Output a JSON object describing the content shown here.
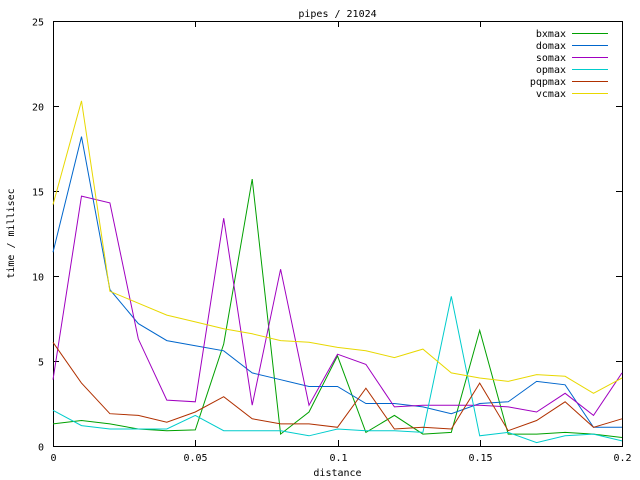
{
  "chart_data": {
    "type": "line",
    "title": "pipes / 21024",
    "xlabel": "distance",
    "ylabel": "time / millisec",
    "xlim": [
      0,
      0.2
    ],
    "ylim": [
      0,
      25
    ],
    "xticks": [
      0,
      0.05,
      0.1,
      0.15,
      0.2
    ],
    "xtick_labels": [
      "0",
      "0.05",
      "0.1",
      "0.15",
      "0.2"
    ],
    "yticks": [
      0,
      5,
      10,
      15,
      20,
      25
    ],
    "ytick_labels": [
      "0",
      "5",
      "10",
      "15",
      "20",
      "25"
    ],
    "grid": false,
    "legend_position": "top-right",
    "x": [
      0,
      0.01,
      0.02,
      0.03,
      0.04,
      0.05,
      0.06,
      0.07,
      0.08,
      0.09,
      0.1,
      0.11,
      0.12,
      0.13,
      0.14,
      0.15,
      0.16,
      0.17,
      0.18,
      0.19,
      0.2
    ],
    "series": [
      {
        "name": "bxmax",
        "color": "#00a000",
        "values": [
          1.3,
          1.5,
          1.3,
          1.0,
          0.9,
          0.95,
          6.0,
          15.7,
          0.7,
          2.0,
          5.3,
          0.8,
          1.8,
          0.7,
          0.8,
          6.8,
          0.7,
          0.7,
          0.8,
          0.7,
          0.5
        ]
      },
      {
        "name": "domax",
        "color": "#0066cc",
        "values": [
          11.4,
          18.2,
          9.2,
          7.2,
          6.2,
          5.9,
          5.6,
          4.3,
          3.9,
          3.5,
          3.5,
          2.5,
          2.5,
          2.3,
          1.9,
          2.5,
          2.6,
          3.8,
          3.6,
          1.1,
          1.1
        ]
      },
      {
        "name": "somax",
        "color": "#a000c0",
        "values": [
          3.9,
          14.7,
          14.3,
          6.3,
          2.7,
          2.6,
          13.4,
          2.4,
          10.4,
          2.4,
          5.4,
          4.8,
          2.3,
          2.4,
          2.4,
          2.4,
          2.3,
          2.0,
          3.1,
          1.8,
          4.3
        ]
      },
      {
        "name": "opmax",
        "color": "#00cccc",
        "values": [
          2.1,
          1.2,
          1.0,
          1.0,
          1.0,
          1.8,
          0.9,
          0.9,
          0.9,
          0.6,
          1.0,
          0.9,
          0.9,
          0.8,
          8.8,
          0.6,
          0.8,
          0.2,
          0.6,
          0.7,
          0.3
        ]
      },
      {
        "name": "pqpmax",
        "color": "#b03000",
        "values": [
          6.1,
          3.7,
          1.9,
          1.8,
          1.4,
          2.0,
          2.9,
          1.6,
          1.3,
          1.3,
          1.1,
          3.4,
          1.0,
          1.1,
          1.0,
          3.7,
          0.9,
          1.5,
          2.6,
          1.1,
          1.6
        ]
      },
      {
        "name": "vcmax",
        "color": "#e8d800",
        "values": [
          14.2,
          20.3,
          9.1,
          8.4,
          7.7,
          7.3,
          6.9,
          6.6,
          6.2,
          6.1,
          5.8,
          5.6,
          5.2,
          5.7,
          4.3,
          4.0,
          3.8,
          4.2,
          4.1,
          3.1,
          4.0
        ]
      }
    ]
  }
}
